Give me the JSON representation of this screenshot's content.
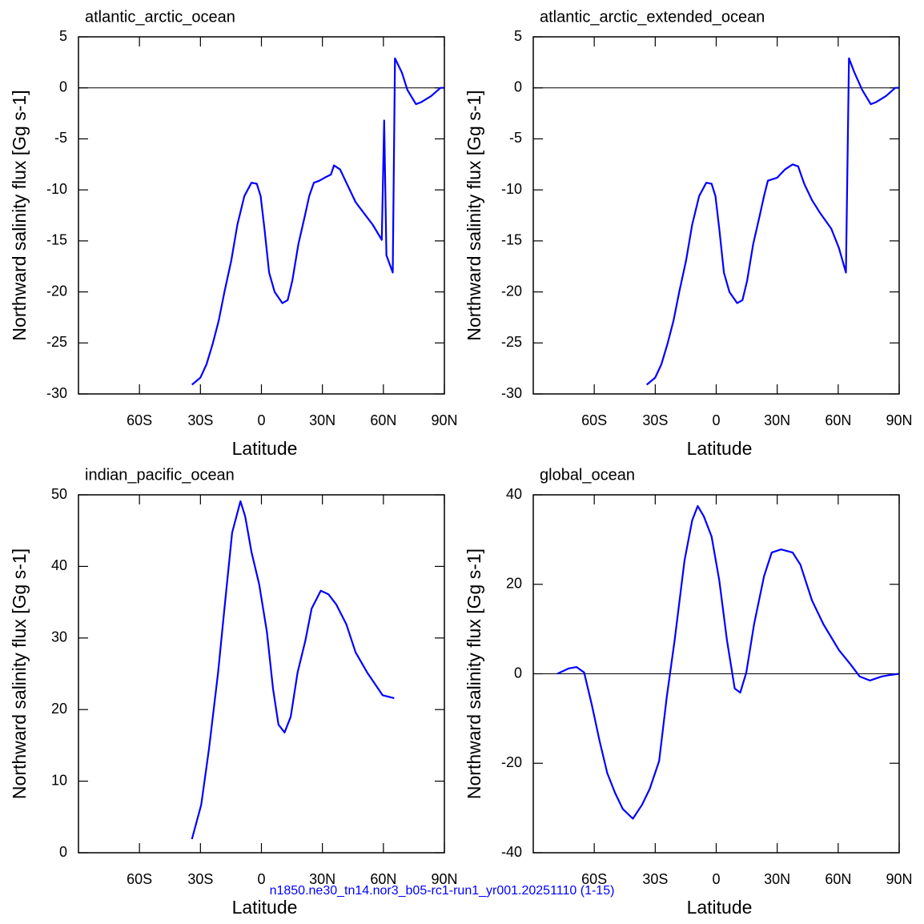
{
  "chart_data": [
    {
      "type": "line",
      "title": "atlantic_arctic_ocean",
      "xlabel": "Latitude",
      "ylabel": "Northward salinity flux [Gg s-1]",
      "color": "#0000ff",
      "zero_line": true,
      "xlim": [
        -90,
        90
      ],
      "xticks": [
        {
          "value": -60,
          "label": "60S"
        },
        {
          "value": -30,
          "label": "30S"
        },
        0,
        {
          "value": 30,
          "label": "30N"
        },
        {
          "value": 60,
          "label": "60N"
        },
        {
          "value": 90,
          "label": "90N"
        }
      ],
      "ylim": [
        -30,
        5
      ],
      "yticks": [
        5,
        0,
        -5,
        -10,
        -15,
        -20,
        -25,
        -30
      ],
      "x": [
        -34.2,
        -30,
        -27,
        -24,
        -21,
        -18.2,
        -14.8,
        -11.8,
        -8.4,
        -4.9,
        -2.3,
        -0.4,
        1.5,
        3.8,
        6.5,
        10.3,
        12.9,
        15.2,
        18.2,
        21.3,
        23.5,
        25.8,
        28.5,
        31.1,
        34.2,
        35.7,
        38.7,
        42.5,
        46.3,
        50.1,
        54.7,
        59.2,
        60.4,
        61.5,
        64.6,
        65.7,
        69.1,
        71.8,
        76,
        78.6,
        83.5,
        88.1,
        90
      ],
      "values": [
        -29.1,
        -28.4,
        -27.1,
        -25.1,
        -22.8,
        -20,
        -16.9,
        -13.4,
        -10.6,
        -9.3,
        -9.4,
        -10.6,
        -13.8,
        -18.1,
        -20,
        -21.1,
        -20.8,
        -18.9,
        -15.3,
        -12.6,
        -10.6,
        -9.3,
        -9.1,
        -8.8,
        -8.5,
        -7.6,
        -8,
        -9.6,
        -11.2,
        -12.2,
        -13.4,
        -14.9,
        -3.2,
        -16.4,
        -18.1,
        2.9,
        1.5,
        -0.2,
        -1.6,
        -1.4,
        -0.8,
        0,
        0
      ]
    },
    {
      "type": "line",
      "title": "atlantic_arctic_extended_ocean",
      "xlabel": "Latitude",
      "ylabel": "Northward salinity flux [Gg s-1]",
      "color": "#0000ff",
      "zero_line": true,
      "xlim": [
        -90,
        90
      ],
      "xticks": [
        {
          "value": -60,
          "label": "60S"
        },
        {
          "value": -30,
          "label": "30S"
        },
        0,
        {
          "value": 30,
          "label": "30N"
        },
        {
          "value": 60,
          "label": "60N"
        },
        {
          "value": 90,
          "label": "90N"
        }
      ],
      "ylim": [
        -30,
        5
      ],
      "yticks": [
        5,
        0,
        -5,
        -10,
        -15,
        -20,
        -25,
        -30
      ],
      "x": [
        -34.2,
        -30,
        -27,
        -24,
        -21,
        -18.2,
        -14.8,
        -11.8,
        -8.4,
        -4.9,
        -2.3,
        -0.4,
        1.5,
        3.8,
        6.5,
        10.3,
        12.9,
        15.2,
        18.2,
        21.3,
        23.5,
        25.4,
        30,
        33.8,
        37.6,
        40.3,
        43.3,
        47.1,
        50.9,
        56.6,
        60.4,
        63.8,
        65.3,
        68,
        71.8,
        76,
        78.6,
        83.5,
        88.1,
        90
      ],
      "values": [
        -29.1,
        -28.4,
        -27.1,
        -25.1,
        -22.8,
        -20,
        -16.9,
        -13.4,
        -10.6,
        -9.3,
        -9.4,
        -10.6,
        -13.8,
        -18.1,
        -20,
        -21.1,
        -20.8,
        -18.9,
        -15.3,
        -12.6,
        -10.6,
        -9.1,
        -8.8,
        -8,
        -7.5,
        -7.7,
        -9.4,
        -11,
        -12.2,
        -13.8,
        -15.7,
        -18.1,
        2.9,
        1.5,
        -0.2,
        -1.6,
        -1.4,
        -0.8,
        0,
        0
      ]
    },
    {
      "type": "line",
      "title": "indian_pacific_ocean",
      "xlabel": "Latitude",
      "ylabel": "Northward salinity flux [Gg s-1]",
      "color": "#0000ff",
      "zero_line": false,
      "xlim": [
        -90,
        90
      ],
      "xticks": [
        {
          "value": -60,
          "label": "60S"
        },
        {
          "value": -30,
          "label": "30S"
        },
        0,
        {
          "value": 30,
          "label": "30N"
        },
        {
          "value": 60,
          "label": "60N"
        },
        {
          "value": 90,
          "label": "90N"
        }
      ],
      "ylim": [
        0,
        50
      ],
      "yticks": [
        0,
        10,
        20,
        30,
        40,
        50
      ],
      "x": [
        -34.2,
        -29.6,
        -25.8,
        -21.3,
        -18.2,
        -14.4,
        -10.3,
        -8,
        -4.9,
        -1.1,
        2.7,
        5.7,
        8.4,
        11.4,
        14.4,
        17.8,
        21.6,
        24.7,
        29.2,
        33,
        36.8,
        41.8,
        46.3,
        52,
        59.6,
        65.3
      ],
      "values": [
        1.9,
        6.7,
        14.5,
        25.2,
        34.1,
        44.7,
        49.1,
        47,
        42,
        37.5,
        30.8,
        22.9,
        17.9,
        16.8,
        19,
        25.2,
        29.6,
        34.1,
        36.6,
        36.1,
        34.7,
        31.9,
        28,
        25.2,
        22,
        21.6
      ]
    },
    {
      "type": "line",
      "title": "global_ocean",
      "xlabel": "Latitude",
      "ylabel": "Northward salinity flux [Gg s-1]",
      "color": "#0000ff",
      "zero_line": true,
      "xlim": [
        -90,
        90
      ],
      "xticks": [
        {
          "value": -60,
          "label": "60S"
        },
        {
          "value": -30,
          "label": "30S"
        },
        0,
        {
          "value": 30,
          "label": "30N"
        },
        {
          "value": 60,
          "label": "60N"
        },
        {
          "value": 90,
          "label": "90N"
        }
      ],
      "ylim": [
        -40,
        40
      ],
      "yticks": [
        40,
        20,
        0,
        -20,
        -40
      ],
      "x": [
        -78.2,
        -72.5,
        -68.7,
        -65,
        -61.2,
        -57.4,
        -53.6,
        -49.8,
        -46,
        -41,
        -36.5,
        -32.7,
        -28.1,
        -24.3,
        -20.5,
        -15.6,
        -11.8,
        -9.1,
        -6.1,
        -2.3,
        1.5,
        5.3,
        9.1,
        11.8,
        14.8,
        18.6,
        23.5,
        27.3,
        31.9,
        37.6,
        41.4,
        47.1,
        52.8,
        60.4,
        66.1,
        70.6,
        75.6,
        81.3,
        85.1,
        90
      ],
      "values": [
        0,
        1.2,
        1.5,
        0.3,
        -6.9,
        -15,
        -22.2,
        -26.6,
        -30.2,
        -32.4,
        -29.3,
        -25.7,
        -19.5,
        -5.1,
        7.4,
        25.3,
        34.3,
        37.5,
        35.2,
        30.7,
        20.9,
        7.4,
        -3.3,
        -4.2,
        0.3,
        11,
        21.8,
        27.1,
        27.8,
        27.1,
        24.4,
        16.4,
        11,
        5.3,
        2.1,
        -0.6,
        -1.5,
        -0.6,
        -0.3,
        0
      ]
    }
  ],
  "footer": "n1850.ne30_tn14.nor3_b05-rc1-run1_yr001.20251110 (1-15)"
}
